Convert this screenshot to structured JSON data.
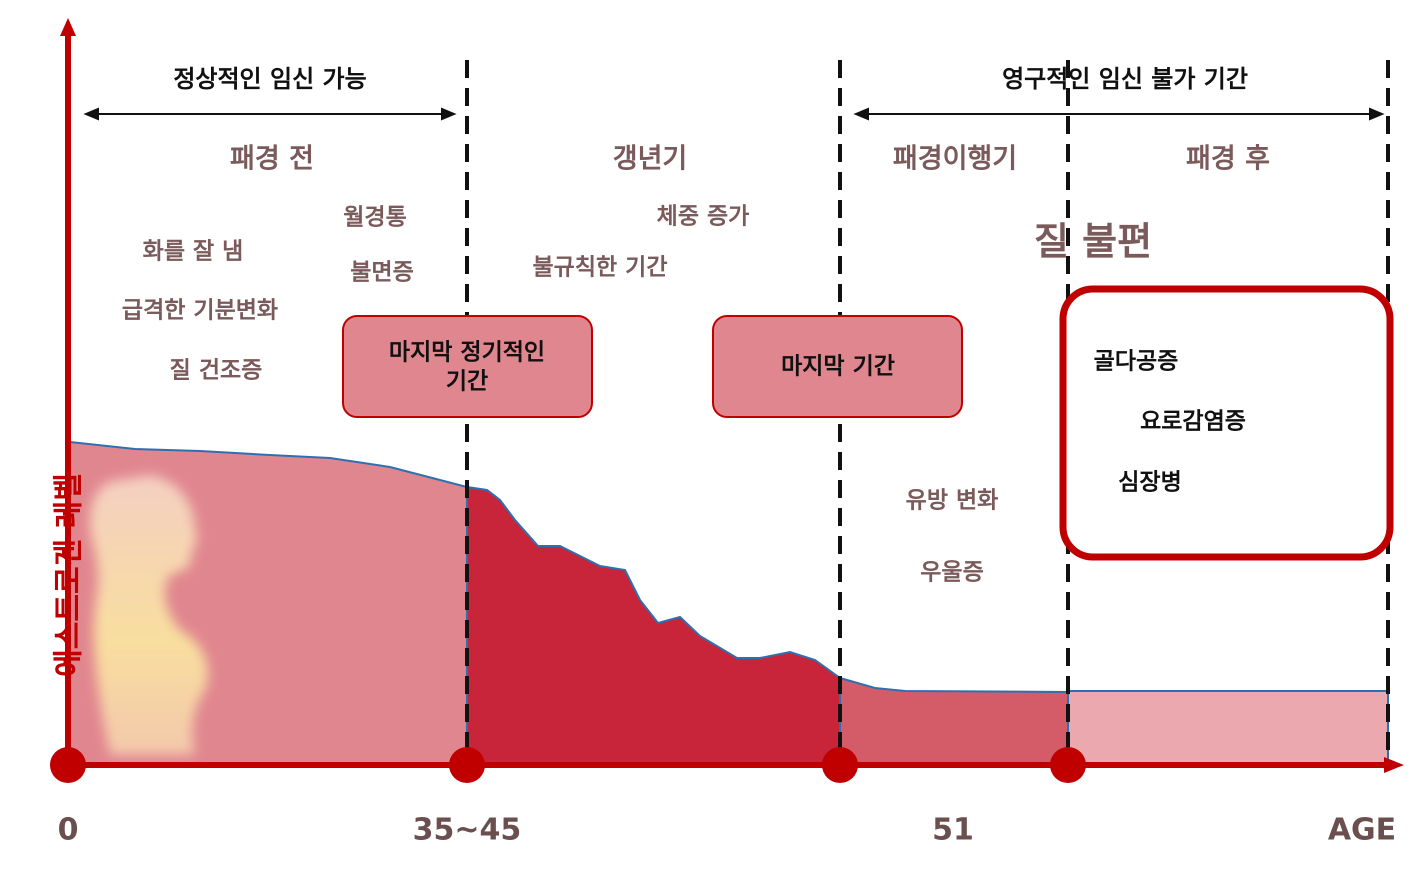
{
  "axis": {
    "y_label": "에스트로겐 레벨",
    "x_labels": [
      "0",
      "35~45",
      "51",
      "AGE"
    ]
  },
  "headers": [
    "정상적인 임신 가능",
    "영구적인 임신 불가 기간"
  ],
  "phases": [
    "패경 전",
    "갱년기",
    "패경이행기",
    "패경 후"
  ],
  "symptoms": {
    "pre": [
      "화를 잘 냄",
      "급격한 기분변화",
      "질 건조증",
      "월경통",
      "불면증"
    ],
    "peri": [
      "체중 증가",
      "불규칙한 기간"
    ],
    "post": [
      "질 불편",
      "유방 변화",
      "우울증"
    ]
  },
  "boxes": {
    "last_regular": [
      "마지막 정기적인",
      "기간"
    ],
    "last_period": "마지막 기간",
    "risks": [
      "골다공증",
      "요로감염증",
      "심장병"
    ]
  }
}
